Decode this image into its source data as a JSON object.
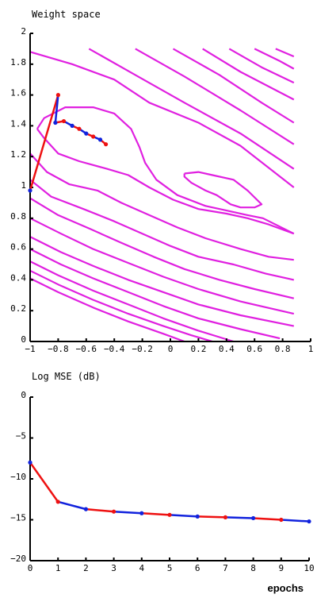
{
  "colors": {
    "contour": "#e020e0",
    "path_red": "#ee1111",
    "path_blue": "#1122dd",
    "axis": "#000000"
  },
  "chart_data": [
    {
      "type": "line",
      "title": "Weight space",
      "xlim": [
        -1,
        1
      ],
      "ylim": [
        0,
        2
      ],
      "x_ticks": [
        -1,
        -0.8,
        -0.6,
        -0.4,
        -0.2,
        0,
        0.2,
        0.4,
        0.6,
        0.8,
        1
      ],
      "x_tick_labels": [
        "-1",
        "-0.8",
        "-0.6",
        "-0.4",
        "-0.2",
        "0",
        "0.2",
        "0.4",
        "0.6",
        "0.8",
        "1"
      ],
      "y_ticks": [
        0,
        0.2,
        0.4,
        0.6,
        0.8,
        1,
        1.2,
        1.4,
        1.6,
        1.8,
        2
      ],
      "y_tick_labels": [
        "0",
        "0.2",
        "0.4",
        "0.6",
        "0.8",
        "1",
        "1.2",
        "1.4",
        "1.6",
        "1.8",
        "2"
      ],
      "grid": false,
      "contours": [
        [
          [
            -1.0,
            1.88
          ],
          [
            -0.7,
            1.8
          ],
          [
            -0.4,
            1.7
          ],
          [
            -0.15,
            1.55
          ],
          [
            0.2,
            1.42
          ],
          [
            0.5,
            1.27
          ],
          [
            0.88,
            1.0
          ]
        ],
        [
          [
            -0.58,
            1.9
          ],
          [
            -0.25,
            1.73
          ],
          [
            0.1,
            1.55
          ],
          [
            0.5,
            1.35
          ],
          [
            0.88,
            1.12
          ]
        ],
        [
          [
            -0.25,
            1.9
          ],
          [
            0.1,
            1.72
          ],
          [
            0.5,
            1.5
          ],
          [
            0.88,
            1.28
          ]
        ],
        [
          [
            0.02,
            1.9
          ],
          [
            0.35,
            1.73
          ],
          [
            0.65,
            1.55
          ],
          [
            0.88,
            1.42
          ]
        ],
        [
          [
            0.23,
            1.9
          ],
          [
            0.5,
            1.75
          ],
          [
            0.88,
            1.57
          ]
        ],
        [
          [
            0.42,
            1.9
          ],
          [
            0.65,
            1.78
          ],
          [
            0.88,
            1.68
          ]
        ],
        [
          [
            0.6,
            1.9
          ],
          [
            0.78,
            1.82
          ],
          [
            0.88,
            1.77
          ]
        ],
        [
          [
            0.75,
            1.9
          ],
          [
            0.88,
            1.85
          ]
        ],
        [
          [
            -0.95,
            1.38
          ],
          [
            -0.9,
            1.45
          ],
          [
            -0.75,
            1.52
          ],
          [
            -0.55,
            1.52
          ],
          [
            -0.4,
            1.48
          ],
          [
            -0.28,
            1.38
          ],
          [
            -0.22,
            1.26
          ],
          [
            -0.18,
            1.16
          ],
          [
            -0.1,
            1.05
          ],
          [
            0.05,
            0.95
          ],
          [
            0.25,
            0.88
          ],
          [
            0.4,
            0.85
          ],
          [
            0.55,
            0.82
          ],
          [
            0.66,
            0.8
          ],
          [
            0.88,
            0.7
          ]
        ],
        [
          [
            -0.95,
            1.38
          ],
          [
            -0.9,
            1.32
          ],
          [
            -0.8,
            1.22
          ],
          [
            -0.65,
            1.17
          ],
          [
            -0.45,
            1.12
          ],
          [
            -0.3,
            1.08
          ],
          [
            -0.15,
            1.0
          ],
          [
            0.02,
            0.92
          ],
          [
            0.2,
            0.86
          ],
          [
            0.4,
            0.83
          ],
          [
            0.55,
            0.8
          ],
          [
            0.7,
            0.76
          ],
          [
            0.88,
            0.7
          ]
        ],
        [
          [
            0.1,
            1.09
          ],
          [
            0.2,
            1.1
          ],
          [
            0.3,
            1.08
          ],
          [
            0.45,
            1.05
          ],
          [
            0.55,
            0.98
          ],
          [
            0.65,
            0.89
          ],
          [
            0.6,
            0.87
          ],
          [
            0.5,
            0.87
          ],
          [
            0.43,
            0.89
          ],
          [
            0.33,
            0.95
          ],
          [
            0.25,
            0.98
          ],
          [
            0.15,
            1.03
          ],
          [
            0.1,
            1.07
          ],
          [
            0.1,
            1.09
          ]
        ],
        [
          [
            -1.0,
            1.22
          ],
          [
            -0.88,
            1.1
          ],
          [
            -0.72,
            1.02
          ],
          [
            -0.52,
            0.98
          ],
          [
            -0.35,
            0.9
          ],
          [
            -0.15,
            0.82
          ],
          [
            0.05,
            0.74
          ],
          [
            0.25,
            0.67
          ],
          [
            0.5,
            0.6
          ],
          [
            0.7,
            0.55
          ],
          [
            0.88,
            0.53
          ]
        ],
        [
          [
            -1.0,
            1.05
          ],
          [
            -0.85,
            0.94
          ],
          [
            -0.62,
            0.86
          ],
          [
            -0.4,
            0.78
          ],
          [
            -0.2,
            0.7
          ],
          [
            0.0,
            0.62
          ],
          [
            0.2,
            0.55
          ],
          [
            0.45,
            0.5
          ],
          [
            0.68,
            0.44
          ],
          [
            0.88,
            0.4
          ]
        ],
        [
          [
            -1.0,
            0.93
          ],
          [
            -0.8,
            0.82
          ],
          [
            -0.57,
            0.73
          ],
          [
            -0.35,
            0.64
          ],
          [
            -0.12,
            0.55
          ],
          [
            0.1,
            0.47
          ],
          [
            0.35,
            0.4
          ],
          [
            0.6,
            0.34
          ],
          [
            0.88,
            0.28
          ]
        ],
        [
          [
            -1.0,
            0.8
          ],
          [
            -0.78,
            0.7
          ],
          [
            -0.55,
            0.6
          ],
          [
            -0.3,
            0.51
          ],
          [
            -0.05,
            0.42
          ],
          [
            0.2,
            0.34
          ],
          [
            0.5,
            0.26
          ],
          [
            0.88,
            0.18
          ]
        ],
        [
          [
            -1.0,
            0.68
          ],
          [
            -0.78,
            0.58
          ],
          [
            -0.55,
            0.49
          ],
          [
            -0.3,
            0.4
          ],
          [
            -0.05,
            0.32
          ],
          [
            0.2,
            0.24
          ],
          [
            0.5,
            0.17
          ],
          [
            0.88,
            0.1
          ]
        ],
        [
          [
            -1.0,
            0.6
          ],
          [
            -0.78,
            0.5
          ],
          [
            -0.55,
            0.41
          ],
          [
            -0.3,
            0.32
          ],
          [
            -0.05,
            0.23
          ],
          [
            0.2,
            0.15
          ],
          [
            0.5,
            0.08
          ],
          [
            0.78,
            0.02
          ]
        ],
        [
          [
            -1.0,
            0.52
          ],
          [
            -0.8,
            0.43
          ],
          [
            -0.55,
            0.33
          ],
          [
            -0.3,
            0.24
          ],
          [
            -0.05,
            0.15
          ],
          [
            0.2,
            0.07
          ],
          [
            0.45,
            0.0
          ]
        ],
        [
          [
            -1.0,
            0.46
          ],
          [
            -0.8,
            0.37
          ],
          [
            -0.55,
            0.27
          ],
          [
            -0.3,
            0.18
          ],
          [
            -0.05,
            0.1
          ],
          [
            0.15,
            0.04
          ],
          [
            0.3,
            0.0
          ]
        ],
        [
          [
            -1.0,
            0.41
          ],
          [
            -0.8,
            0.32
          ],
          [
            -0.55,
            0.22
          ],
          [
            -0.3,
            0.13
          ],
          [
            -0.05,
            0.05
          ],
          [
            0.1,
            0.0
          ]
        ]
      ],
      "path": [
        {
          "x": -1.0,
          "y": 0.98
        },
        {
          "x": -0.8,
          "y": 1.6
        },
        {
          "x": -0.82,
          "y": 1.42
        },
        {
          "x": -0.76,
          "y": 1.43
        },
        {
          "x": -0.7,
          "y": 1.4
        },
        {
          "x": -0.65,
          "y": 1.38
        },
        {
          "x": -0.6,
          "y": 1.35
        },
        {
          "x": -0.55,
          "y": 1.33
        },
        {
          "x": -0.5,
          "y": 1.31
        },
        {
          "x": -0.46,
          "y": 1.28
        }
      ],
      "segment_colors": [
        "red",
        "blue",
        "red",
        "blue",
        "red",
        "blue",
        "red",
        "blue",
        "red"
      ]
    },
    {
      "type": "line",
      "title": "Log MSE (dB)",
      "xlabel": "epochs",
      "xlim": [
        0,
        10
      ],
      "ylim": [
        -20,
        0
      ],
      "x_ticks": [
        0,
        1,
        2,
        3,
        4,
        5,
        6,
        7,
        8,
        9,
        10
      ],
      "x_tick_labels": [
        "0",
        "1",
        "2",
        "3",
        "4",
        "5",
        "6",
        "7",
        "8",
        "9",
        "10"
      ],
      "y_ticks": [
        0,
        -5,
        -10,
        -15,
        -20
      ],
      "y_tick_labels": [
        "0",
        "-5",
        "-10",
        "-15",
        "-20"
      ],
      "grid": false,
      "x": [
        0,
        1,
        2,
        3,
        4,
        5,
        6,
        7,
        8,
        9,
        10
      ],
      "values": [
        -8,
        -12.8,
        -13.7,
        -14.0,
        -14.2,
        -14.4,
        -14.6,
        -14.7,
        -14.8,
        -15.0,
        -15.2
      ],
      "segment_colors": [
        "red",
        "blue",
        "red",
        "blue",
        "red",
        "blue",
        "red",
        "blue",
        "red",
        "blue"
      ]
    }
  ]
}
